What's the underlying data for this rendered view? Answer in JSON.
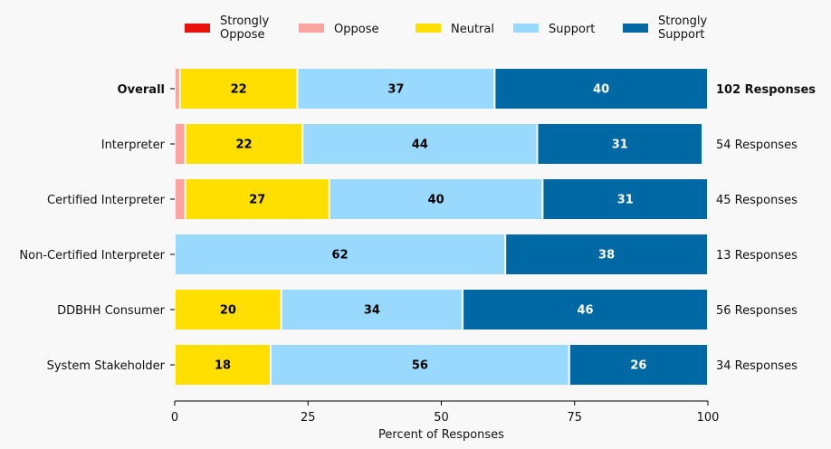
{
  "chart_data": {
    "type": "bar",
    "orientation": "horizontal",
    "stacked": true,
    "title": "",
    "xlabel": "Percent of Responses",
    "ylabel": "",
    "xlim": [
      0,
      100
    ],
    "xticks": [
      0,
      25,
      50,
      75,
      100
    ],
    "grid": false,
    "legend_position": "top",
    "categories": [
      "Overall",
      "Interpreter",
      "Certified Interpreter",
      "Non-Certified Interpreter",
      "DDBHH Consumer",
      "System Stakeholder"
    ],
    "bold_categories": [
      "Overall"
    ],
    "response_counts": [
      "102 Responses",
      "54 Responses",
      "45 Responses",
      "13 Responses",
      "56 Responses",
      "34 Responses"
    ],
    "series": [
      {
        "name": "Strongly Oppose",
        "label_lines": [
          "Strongly",
          "Oppose"
        ],
        "color": "#e8120c",
        "label_color": "#ffffff",
        "values": [
          0,
          0,
          0,
          0,
          0,
          0
        ]
      },
      {
        "name": "Oppose",
        "label_lines": [
          "Oppose"
        ],
        "color": "#fca49f",
        "label_color": "#000000",
        "values": [
          1,
          2,
          2,
          0,
          0,
          0
        ]
      },
      {
        "name": "Neutral",
        "label_lines": [
          "Neutral"
        ],
        "color": "#ffdf00",
        "label_color": "#000000",
        "values": [
          22,
          22,
          27,
          0,
          20,
          18
        ]
      },
      {
        "name": "Support",
        "label_lines": [
          "Support"
        ],
        "color": "#9ad9fe",
        "label_color": "#000000",
        "values": [
          37,
          44,
          40,
          62,
          34,
          56
        ]
      },
      {
        "name": "Strongly Support",
        "label_lines": [
          "Strongly",
          "Support"
        ],
        "color": "#0069a3",
        "label_color": "#ffffff",
        "values": [
          40,
          31,
          31,
          38,
          46,
          26
        ]
      }
    ],
    "label_min_value": 5
  }
}
